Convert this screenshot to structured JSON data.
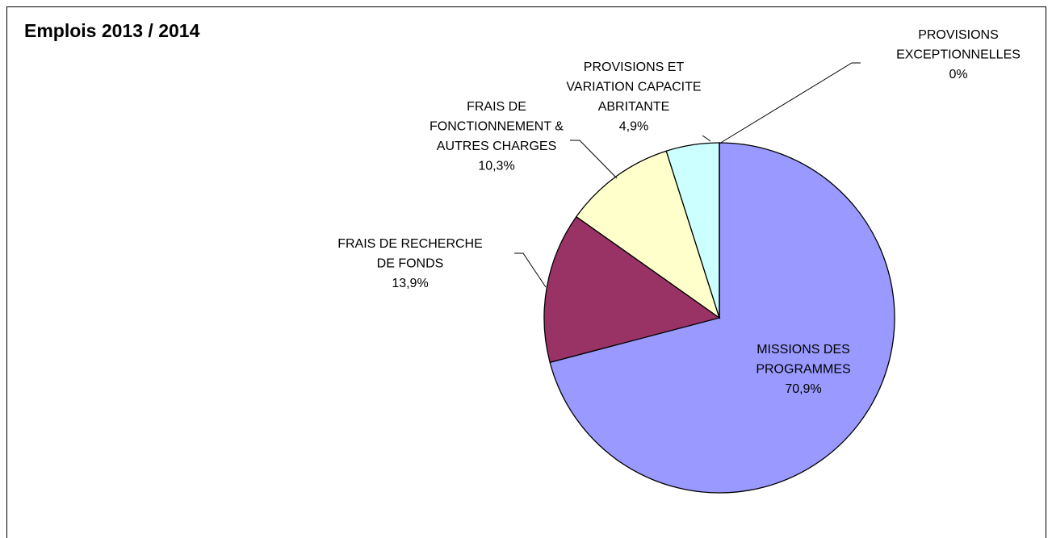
{
  "chart_data": {
    "type": "pie",
    "title": "Emplois 2013 / 2014",
    "categories": [
      "MISSIONS DES PROGRAMMES",
      "FRAIS DE RECHERCHE DE FONDS",
      "FRAIS DE FONCTIONNEMENT & AUTRES CHARGES",
      "PROVISIONS ET VARIATION CAPACITE ABRITANTE",
      "PROVISIONS EXCEPTIONNELLES"
    ],
    "values": [
      70.9,
      13.9,
      10.3,
      4.9,
      0
    ],
    "value_labels": [
      "70,9%",
      "13,9%",
      "10,3%",
      "4,9%",
      "0%"
    ],
    "colors": [
      "#9999ff",
      "#993366",
      "#ffffcc",
      "#ccffff",
      "#ffffff"
    ]
  }
}
